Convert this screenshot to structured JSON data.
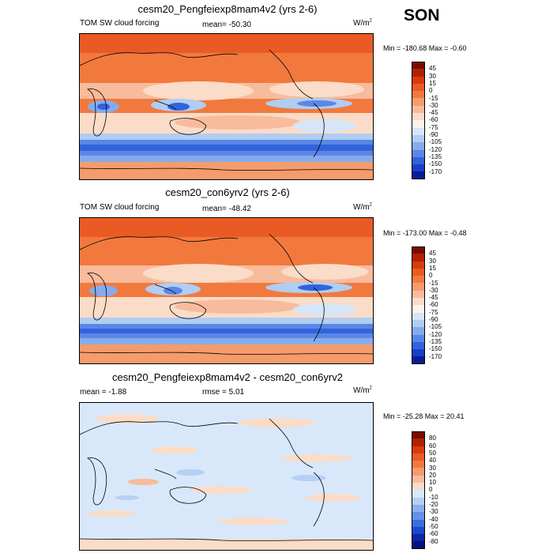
{
  "season": "SON",
  "units_text": "W/m",
  "units_exp": "2",
  "panels": [
    {
      "title": "cesm20_Pengfeiexp8mam4v2 (yrs 2-6)",
      "left_label": "TOM SW cloud forcing",
      "center_label": "mean= -50.30",
      "minmax": "Min = -180.68 Max =  -0.60",
      "levels": [
        "45",
        "30",
        "15",
        "0",
        "-15",
        "-30",
        "-45",
        "-60",
        "-75",
        "-90",
        "-105",
        "-120",
        "-135",
        "-150",
        "-170"
      ],
      "colors": [
        "#7a0a00",
        "#b22200",
        "#d83c0a",
        "#ea5a24",
        "#f2793e",
        "#f69b6c",
        "#f8bb9c",
        "#fadcc8",
        "#fbf4ec",
        "#d6e6f8",
        "#b0cdf2",
        "#86abec",
        "#5a87e6",
        "#3263dc",
        "#1740c8",
        "#0b1c96"
      ]
    },
    {
      "title": "cesm20_con6yrv2 (yrs 2-6)",
      "left_label": "TOM SW cloud forcing",
      "center_label": "mean= -48.42",
      "minmax": "Min = -173.00 Max =  -0.48",
      "levels": [
        "45",
        "30",
        "15",
        "0",
        "-15",
        "-30",
        "-45",
        "-60",
        "-75",
        "-90",
        "-105",
        "-120",
        "-135",
        "-150",
        "-170"
      ],
      "colors": [
        "#7a0a00",
        "#b22200",
        "#d83c0a",
        "#ea5a24",
        "#f2793e",
        "#f69b6c",
        "#f8bb9c",
        "#fadcc8",
        "#fbf4ec",
        "#d6e6f8",
        "#b0cdf2",
        "#86abec",
        "#5a87e6",
        "#3263dc",
        "#1740c8",
        "#0b1c96"
      ]
    },
    {
      "title": "cesm20_Pengfeiexp8mam4v2 - cesm20_con6yrv2",
      "left_label": "mean =  -1.88",
      "center_label": "rmse =   5.01",
      "minmax": "Min = -25.28 Max =  20.41",
      "levels": [
        "80",
        "60",
        "50",
        "40",
        "30",
        "20",
        "10",
        "0",
        "-10",
        "-20",
        "-30",
        "-40",
        "-50",
        "-60",
        "-80"
      ],
      "colors": [
        "#7a0a00",
        "#b22200",
        "#d83c0a",
        "#ea5a24",
        "#f2793e",
        "#f69b6c",
        "#f8bb9c",
        "#fadcc8",
        "#d8e8fa",
        "#b4d0f4",
        "#8cb0ee",
        "#6690e8",
        "#3c6ee0",
        "#1e48cc",
        "#0e26a6",
        "#061080"
      ]
    }
  ]
}
